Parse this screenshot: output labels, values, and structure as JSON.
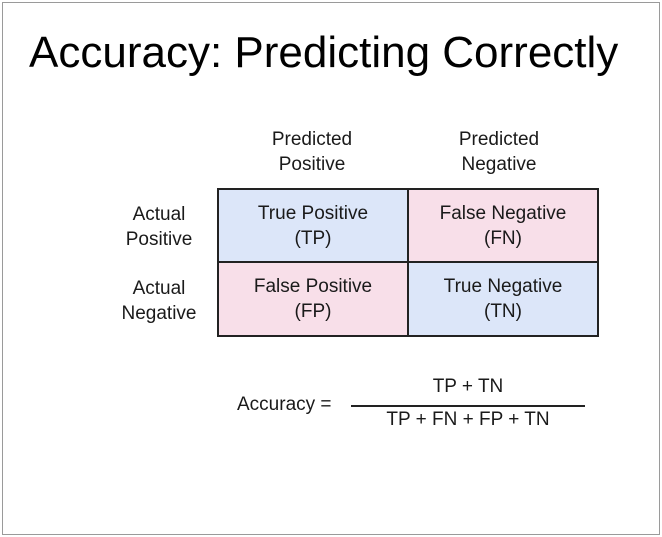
{
  "title": "Accuracy: Predicting Correctly",
  "columns": {
    "predicted_positive": [
      "Predicted",
      "Positive"
    ],
    "predicted_negative": [
      "Predicted",
      "Negative"
    ]
  },
  "rows": {
    "actual_positive": [
      "Actual",
      "Positive"
    ],
    "actual_negative": [
      "Actual",
      "Negative"
    ]
  },
  "cells": {
    "tp": {
      "name": "True Positive",
      "abbr": "(TP)"
    },
    "fn": {
      "name": "False Negative",
      "abbr": "(FN)"
    },
    "fp": {
      "name": "False Positive",
      "abbr": "(FP)"
    },
    "tn": {
      "name": "True Negative",
      "abbr": "(TN)"
    }
  },
  "formula": {
    "label": "Accuracy =",
    "numerator": "TP + TN",
    "denominator": "TP + FN + FP + TN"
  },
  "colors": {
    "correct_cell": "#dce6f9",
    "incorrect_cell": "#f8dfe9"
  }
}
